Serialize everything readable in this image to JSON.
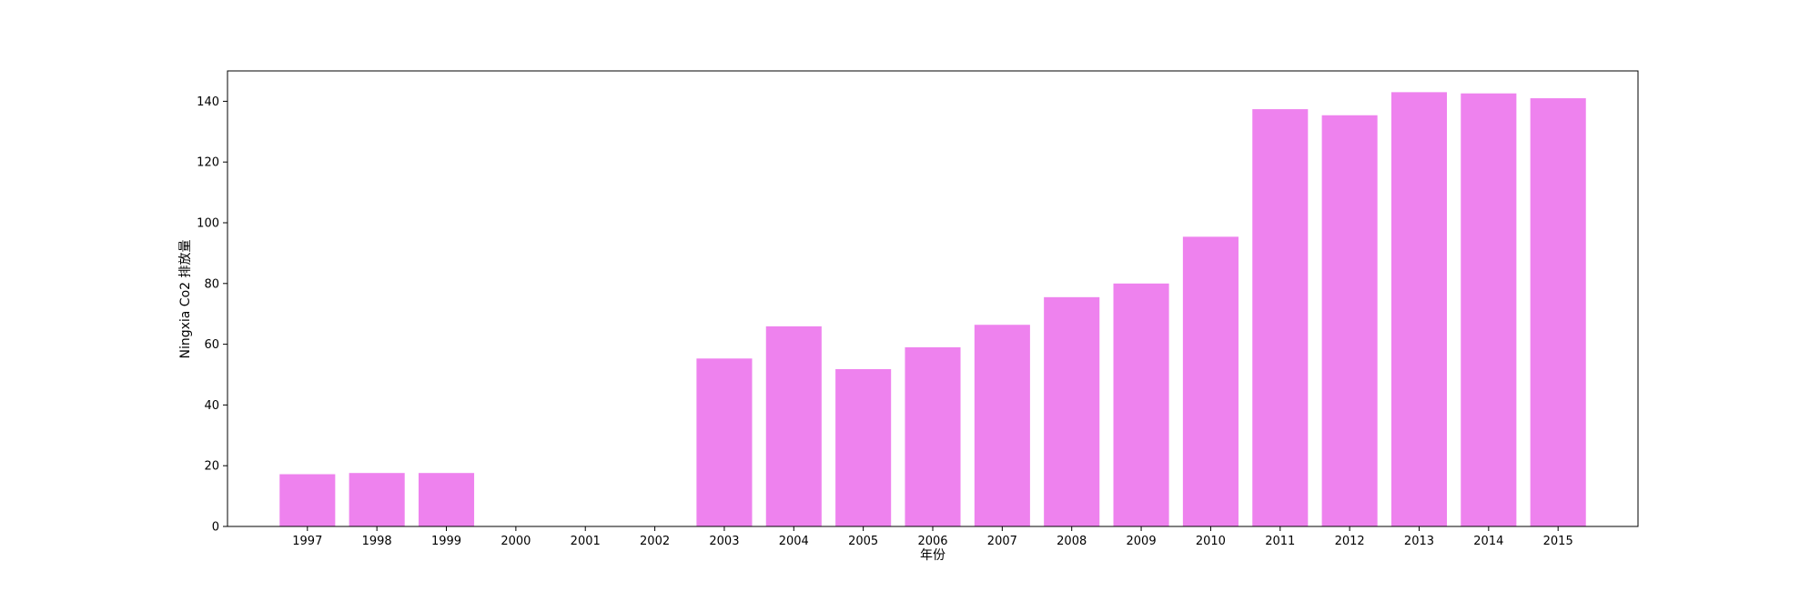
{
  "chart_data": {
    "type": "bar",
    "categories": [
      "1997",
      "1998",
      "1999",
      "2000",
      "2001",
      "2002",
      "2003",
      "2004",
      "2005",
      "2006",
      "2007",
      "2008",
      "2009",
      "2010",
      "2011",
      "2012",
      "2013",
      "2014",
      "2015"
    ],
    "values": [
      17.2,
      17.6,
      17.6,
      0,
      0,
      0,
      55.3,
      65.9,
      51.8,
      59.0,
      66.4,
      75.5,
      80.0,
      95.4,
      137.4,
      135.4,
      143.0,
      142.6,
      141.0
    ],
    "title": "",
    "xlabel": "年份",
    "ylabel": "Ningxia Co2 排放量",
    "ylim": [
      0,
      150
    ],
    "yticks": [
      0,
      20,
      40,
      60,
      80,
      100,
      120,
      140
    ],
    "bar_color": "#ee82ee",
    "grid": false
  }
}
